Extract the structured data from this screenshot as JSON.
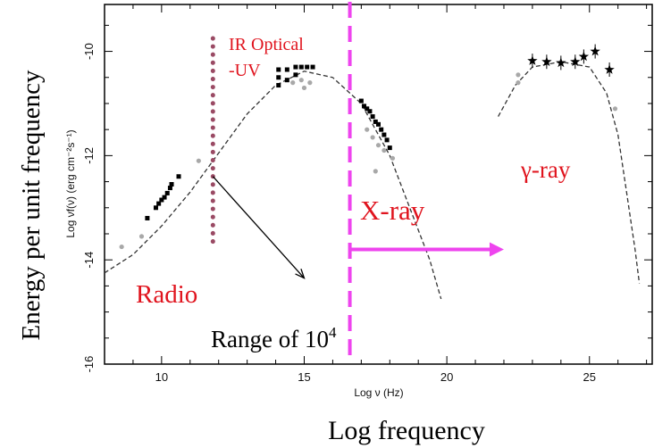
{
  "chart_data": {
    "type": "scatter",
    "title": "",
    "xlabel": "Log ν (Hz)",
    "ylabel": "Log νf(ν) (erg cm⁻²s⁻¹)",
    "outer_xlabel": "Log frequency",
    "outer_ylabel": "Energy per unit frequency",
    "xlim": [
      8,
      27.2
    ],
    "ylim": [
      -16,
      -9.1
    ],
    "x_ticks": [
      10,
      15,
      20,
      25
    ],
    "y_ticks": [
      -10,
      -12,
      -14,
      -16
    ],
    "grid": false,
    "colors": {
      "annotation_red": "#e0141e",
      "xray_magenta": "#ee44ee",
      "dotted_line": "#9a4a64",
      "data_black": "#000000",
      "data_gray": "#a8a8a8"
    },
    "series": [
      {
        "kind": "model-curve",
        "points": [
          [
            8.0,
            -14.25
          ],
          [
            9.0,
            -13.9
          ],
          [
            10.0,
            -13.35
          ],
          [
            11.0,
            -12.7
          ],
          [
            12.0,
            -11.95
          ],
          [
            13.0,
            -11.2
          ],
          [
            14.0,
            -10.65
          ],
          [
            15.0,
            -10.38
          ],
          [
            16.0,
            -10.5
          ],
          [
            17.0,
            -11.0
          ],
          [
            18.0,
            -12.0
          ],
          [
            18.7,
            -13.0
          ],
          [
            19.4,
            -14.0
          ],
          [
            19.8,
            -14.75
          ]
        ]
      },
      {
        "kind": "model-curve",
        "points": [
          [
            21.8,
            -11.25
          ],
          [
            22.4,
            -10.65
          ],
          [
            23.0,
            -10.3
          ],
          [
            24.0,
            -10.2
          ],
          [
            25.0,
            -10.3
          ],
          [
            25.6,
            -10.8
          ],
          [
            26.0,
            -11.6
          ],
          [
            26.3,
            -12.7
          ],
          [
            26.6,
            -13.8
          ],
          [
            26.75,
            -14.45
          ]
        ]
      },
      {
        "kind": "black-points",
        "points": [
          [
            9.5,
            -13.2
          ],
          [
            9.8,
            -13.0
          ],
          [
            9.9,
            -12.92
          ],
          [
            10.0,
            -12.85
          ],
          [
            10.1,
            -12.8
          ],
          [
            10.2,
            -12.72
          ],
          [
            10.3,
            -12.62
          ],
          [
            10.35,
            -12.55
          ],
          [
            10.6,
            -12.4
          ],
          [
            14.1,
            -10.35
          ],
          [
            14.1,
            -10.5
          ],
          [
            14.1,
            -10.65
          ],
          [
            14.4,
            -10.35
          ],
          [
            14.4,
            -10.55
          ],
          [
            14.7,
            -10.3
          ],
          [
            14.7,
            -10.45
          ],
          [
            14.9,
            -10.3
          ],
          [
            15.1,
            -10.3
          ],
          [
            15.3,
            -10.3
          ],
          [
            17.0,
            -10.95
          ],
          [
            17.1,
            -11.05
          ],
          [
            17.2,
            -11.1
          ],
          [
            17.3,
            -11.15
          ],
          [
            17.4,
            -11.25
          ],
          [
            17.5,
            -11.35
          ],
          [
            17.6,
            -11.4
          ],
          [
            17.7,
            -11.5
          ],
          [
            17.8,
            -11.6
          ],
          [
            17.9,
            -11.7
          ],
          [
            18.0,
            -11.85
          ]
        ]
      },
      {
        "kind": "gray-points",
        "points": [
          [
            8.6,
            -13.75
          ],
          [
            9.3,
            -13.55
          ],
          [
            11.3,
            -12.1
          ],
          [
            14.6,
            -10.6
          ],
          [
            14.9,
            -10.55
          ],
          [
            15.0,
            -10.7
          ],
          [
            15.2,
            -10.6
          ],
          [
            17.2,
            -11.5
          ],
          [
            17.4,
            -11.65
          ],
          [
            17.6,
            -11.8
          ],
          [
            17.8,
            -11.9
          ],
          [
            18.1,
            -12.05
          ],
          [
            17.5,
            -12.3
          ],
          [
            22.5,
            -10.45
          ],
          [
            22.5,
            -10.6
          ],
          [
            25.9,
            -11.1
          ]
        ]
      },
      {
        "kind": "gamma-stars",
        "points": [
          [
            23.0,
            -10.18
          ],
          [
            23.5,
            -10.2
          ],
          [
            24.0,
            -10.22
          ],
          [
            24.5,
            -10.2
          ],
          [
            24.8,
            -10.1
          ],
          [
            25.2,
            -10.0
          ],
          [
            25.7,
            -10.35
          ]
        ]
      }
    ],
    "annotations": {
      "ir_optical_uv": [
        "IR Optical",
        "-UV"
      ],
      "radio": "Radio",
      "xray": "X-ray",
      "gamma": "γ-ray",
      "range_text": "Range of 10",
      "range_sup": "4"
    },
    "markers": {
      "dotted_line_x": 11.8,
      "dotted_line_y": [
        -9.75,
        -13.8
      ],
      "dashed_line_x": 16.6,
      "xray_arrow_y": -13.8,
      "xray_arrow_x": [
        16.6,
        22.0
      ],
      "range_arrow_from": [
        11.8,
        -12.4
      ],
      "range_arrow_to": [
        15.0,
        -14.35
      ]
    }
  }
}
